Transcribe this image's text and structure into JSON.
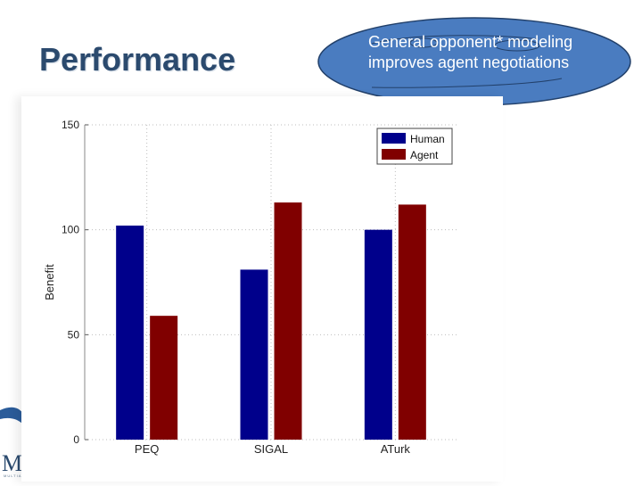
{
  "slide": {
    "title": "Performance",
    "callout_text": "General opponent* modeling improves agent negotiations",
    "logo_letter": "M",
    "logo_subtext": "MULTIA"
  },
  "colors": {
    "title": "#2b4a6e",
    "callout_fill": "#4a7cc0",
    "callout_stroke": "#22406a",
    "human": "#00008b",
    "agent": "#800000"
  },
  "chart_data": {
    "type": "bar",
    "title": "",
    "xlabel": "",
    "ylabel": "Benefit",
    "ylim": [
      0,
      150
    ],
    "yticks": [
      0,
      50,
      100,
      150
    ],
    "categories": [
      "PEQ",
      "SIGAL",
      "ATurk"
    ],
    "series": [
      {
        "name": "Human",
        "color": "#00008b",
        "values": [
          102,
          81,
          100
        ]
      },
      {
        "name": "Agent",
        "color": "#800000",
        "values": [
          59,
          113,
          112
        ]
      }
    ],
    "grid": true,
    "legend_position": "top-right"
  }
}
